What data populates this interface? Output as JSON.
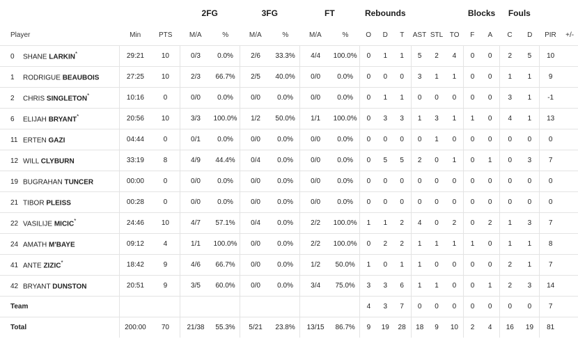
{
  "headers": {
    "groups": {
      "fg2": "2FG",
      "fg3": "3FG",
      "ft": "FT",
      "rebounds": "Rebounds",
      "blocks": "Blocks",
      "fouls": "Fouls"
    },
    "player": "Player",
    "min": "Min",
    "pts": "PTS",
    "fg2_ma": "M/A",
    "fg2_pct": "%",
    "fg3_ma": "M/A",
    "fg3_pct": "%",
    "ft_ma": "M/A",
    "ft_pct": "%",
    "reb_o": "O",
    "reb_d": "D",
    "reb_t": "T",
    "ast": "AST",
    "stl": "STL",
    "to": "TO",
    "blk_f": "F",
    "blk_a": "A",
    "foul_c": "C",
    "foul_d": "D",
    "pir": "PIR",
    "plusminus": "+/-"
  },
  "players": [
    {
      "num": "0",
      "first": "SHANE",
      "last": "LARKIN",
      "starter": "*",
      "min": "29:21",
      "pts": "10",
      "fg2_ma": "0/3",
      "fg2_pct": "0.0%",
      "fg3_ma": "2/6",
      "fg3_pct": "33.3%",
      "ft_ma": "4/4",
      "ft_pct": "100.0%",
      "o": "0",
      "d": "1",
      "t": "1",
      "ast": "5",
      "stl": "2",
      "to": "4",
      "bf": "0",
      "ba": "0",
      "fc": "2",
      "fd": "5",
      "pir": "10",
      "pm": ""
    },
    {
      "num": "1",
      "first": "RODRIGUE",
      "last": "BEAUBOIS",
      "starter": "",
      "min": "27:25",
      "pts": "10",
      "fg2_ma": "2/3",
      "fg2_pct": "66.7%",
      "fg3_ma": "2/5",
      "fg3_pct": "40.0%",
      "ft_ma": "0/0",
      "ft_pct": "0.0%",
      "o": "0",
      "d": "0",
      "t": "0",
      "ast": "3",
      "stl": "1",
      "to": "1",
      "bf": "0",
      "ba": "0",
      "fc": "1",
      "fd": "1",
      "pir": "9",
      "pm": ""
    },
    {
      "num": "2",
      "first": "CHRIS",
      "last": "SINGLETON",
      "starter": "*",
      "min": "10:16",
      "pts": "0",
      "fg2_ma": "0/0",
      "fg2_pct": "0.0%",
      "fg3_ma": "0/0",
      "fg3_pct": "0.0%",
      "ft_ma": "0/0",
      "ft_pct": "0.0%",
      "o": "0",
      "d": "1",
      "t": "1",
      "ast": "0",
      "stl": "0",
      "to": "0",
      "bf": "0",
      "ba": "0",
      "fc": "3",
      "fd": "1",
      "pir": "-1",
      "pm": ""
    },
    {
      "num": "6",
      "first": "ELIJAH",
      "last": "BRYANT",
      "starter": "*",
      "min": "20:56",
      "pts": "10",
      "fg2_ma": "3/3",
      "fg2_pct": "100.0%",
      "fg3_ma": "1/2",
      "fg3_pct": "50.0%",
      "ft_ma": "1/1",
      "ft_pct": "100.0%",
      "o": "0",
      "d": "3",
      "t": "3",
      "ast": "1",
      "stl": "3",
      "to": "1",
      "bf": "1",
      "ba": "0",
      "fc": "4",
      "fd": "1",
      "pir": "13",
      "pm": ""
    },
    {
      "num": "11",
      "first": "ERTEN",
      "last": "GAZI",
      "starter": "",
      "min": "04:44",
      "pts": "0",
      "fg2_ma": "0/1",
      "fg2_pct": "0.0%",
      "fg3_ma": "0/0",
      "fg3_pct": "0.0%",
      "ft_ma": "0/0",
      "ft_pct": "0.0%",
      "o": "0",
      "d": "0",
      "t": "0",
      "ast": "0",
      "stl": "1",
      "to": "0",
      "bf": "0",
      "ba": "0",
      "fc": "0",
      "fd": "0",
      "pir": "0",
      "pm": ""
    },
    {
      "num": "12",
      "first": "WILL",
      "last": "CLYBURN",
      "starter": "",
      "min": "33:19",
      "pts": "8",
      "fg2_ma": "4/9",
      "fg2_pct": "44.4%",
      "fg3_ma": "0/4",
      "fg3_pct": "0.0%",
      "ft_ma": "0/0",
      "ft_pct": "0.0%",
      "o": "0",
      "d": "5",
      "t": "5",
      "ast": "2",
      "stl": "0",
      "to": "1",
      "bf": "0",
      "ba": "1",
      "fc": "0",
      "fd": "3",
      "pir": "7",
      "pm": ""
    },
    {
      "num": "19",
      "first": "BUGRAHAN",
      "last": "TUNCER",
      "starter": "",
      "min": "00:00",
      "pts": "0",
      "fg2_ma": "0/0",
      "fg2_pct": "0.0%",
      "fg3_ma": "0/0",
      "fg3_pct": "0.0%",
      "ft_ma": "0/0",
      "ft_pct": "0.0%",
      "o": "0",
      "d": "0",
      "t": "0",
      "ast": "0",
      "stl": "0",
      "to": "0",
      "bf": "0",
      "ba": "0",
      "fc": "0",
      "fd": "0",
      "pir": "0",
      "pm": ""
    },
    {
      "num": "21",
      "first": "TIBOR",
      "last": "PLEISS",
      "starter": "",
      "min": "00:28",
      "pts": "0",
      "fg2_ma": "0/0",
      "fg2_pct": "0.0%",
      "fg3_ma": "0/0",
      "fg3_pct": "0.0%",
      "ft_ma": "0/0",
      "ft_pct": "0.0%",
      "o": "0",
      "d": "0",
      "t": "0",
      "ast": "0",
      "stl": "0",
      "to": "0",
      "bf": "0",
      "ba": "0",
      "fc": "0",
      "fd": "0",
      "pir": "0",
      "pm": ""
    },
    {
      "num": "22",
      "first": "VASILIJE",
      "last": "MICIC",
      "starter": "*",
      "min": "24:46",
      "pts": "10",
      "fg2_ma": "4/7",
      "fg2_pct": "57.1%",
      "fg3_ma": "0/4",
      "fg3_pct": "0.0%",
      "ft_ma": "2/2",
      "ft_pct": "100.0%",
      "o": "1",
      "d": "1",
      "t": "2",
      "ast": "4",
      "stl": "0",
      "to": "2",
      "bf": "0",
      "ba": "2",
      "fc": "1",
      "fd": "3",
      "pir": "7",
      "pm": ""
    },
    {
      "num": "24",
      "first": "AMATH",
      "last": "M'BAYE",
      "starter": "",
      "min": "09:12",
      "pts": "4",
      "fg2_ma": "1/1",
      "fg2_pct": "100.0%",
      "fg3_ma": "0/0",
      "fg3_pct": "0.0%",
      "ft_ma": "2/2",
      "ft_pct": "100.0%",
      "o": "0",
      "d": "2",
      "t": "2",
      "ast": "1",
      "stl": "1",
      "to": "1",
      "bf": "1",
      "ba": "0",
      "fc": "1",
      "fd": "1",
      "pir": "8",
      "pm": ""
    },
    {
      "num": "41",
      "first": "ANTE",
      "last": "ZIZIC",
      "starter": "*",
      "min": "18:42",
      "pts": "9",
      "fg2_ma": "4/6",
      "fg2_pct": "66.7%",
      "fg3_ma": "0/0",
      "fg3_pct": "0.0%",
      "ft_ma": "1/2",
      "ft_pct": "50.0%",
      "o": "1",
      "d": "0",
      "t": "1",
      "ast": "1",
      "stl": "0",
      "to": "0",
      "bf": "0",
      "ba": "0",
      "fc": "2",
      "fd": "1",
      "pir": "7",
      "pm": ""
    },
    {
      "num": "42",
      "first": "BRYANT",
      "last": "DUNSTON",
      "starter": "",
      "min": "20:51",
      "pts": "9",
      "fg2_ma": "3/5",
      "fg2_pct": "60.0%",
      "fg3_ma": "0/0",
      "fg3_pct": "0.0%",
      "ft_ma": "3/4",
      "ft_pct": "75.0%",
      "o": "3",
      "d": "3",
      "t": "6",
      "ast": "1",
      "stl": "1",
      "to": "0",
      "bf": "0",
      "ba": "1",
      "fc": "2",
      "fd": "3",
      "pir": "14",
      "pm": ""
    }
  ],
  "team": {
    "label": "Team",
    "o": "4",
    "d": "3",
    "t": "7",
    "ast": "0",
    "stl": "0",
    "to": "0",
    "bf": "0",
    "ba": "0",
    "fc": "0",
    "fd": "0",
    "pir": "7"
  },
  "total": {
    "label": "Total",
    "min": "200:00",
    "pts": "70",
    "fg2_ma": "21/38",
    "fg2_pct": "55.3%",
    "fg3_ma": "5/21",
    "fg3_pct": "23.8%",
    "ft_ma": "13/15",
    "ft_pct": "86.7%",
    "o": "9",
    "d": "19",
    "t": "28",
    "ast": "18",
    "stl": "9",
    "to": "10",
    "bf": "2",
    "ba": "4",
    "fc": "16",
    "fd": "19",
    "pir": "81"
  }
}
